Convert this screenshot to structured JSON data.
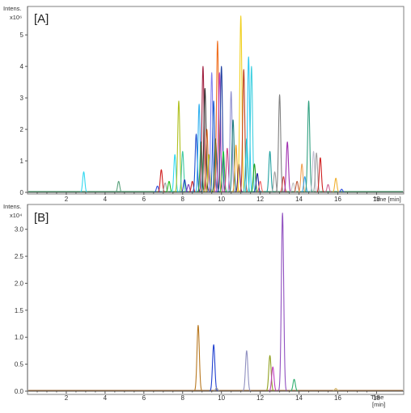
{
  "chart_data": [
    {
      "type": "line",
      "panel_label": "[A]",
      "ylabel_line1": "Intens.",
      "ylabel_exponent": "x10⁶",
      "xlabel": "Time [min]",
      "xlim": [
        0,
        19.4
      ],
      "ylim": [
        0,
        5.8
      ],
      "xticks": [
        2,
        4,
        6,
        8,
        10,
        12,
        14,
        16,
        18
      ],
      "yticks": [
        0,
        1,
        2,
        3,
        4,
        5
      ],
      "baseline_color": "#2e8b57",
      "peaks": [
        {
          "t": 2.9,
          "h": 0.65,
          "color": "#30d8f0"
        },
        {
          "t": 4.7,
          "h": 0.35,
          "color": "#5aa27c"
        },
        {
          "t": 6.7,
          "h": 0.2,
          "color": "#3050e0"
        },
        {
          "t": 6.9,
          "h": 0.72,
          "color": "#d02020"
        },
        {
          "t": 7.1,
          "h": 0.3,
          "color": "#a0a0a0"
        },
        {
          "t": 7.3,
          "h": 0.35,
          "color": "#20c020"
        },
        {
          "t": 7.6,
          "h": 1.2,
          "color": "#30d8f0"
        },
        {
          "t": 7.8,
          "h": 2.9,
          "color": "#b0c020"
        },
        {
          "t": 8.0,
          "h": 1.3,
          "color": "#40c8a0"
        },
        {
          "t": 8.1,
          "h": 0.4,
          "color": "#2040c0"
        },
        {
          "t": 8.3,
          "h": 0.25,
          "color": "#8040c0"
        },
        {
          "t": 8.5,
          "h": 0.35,
          "color": "#d02020"
        },
        {
          "t": 8.7,
          "h": 1.85,
          "color": "#2050d0"
        },
        {
          "t": 8.85,
          "h": 2.8,
          "color": "#30b0f0"
        },
        {
          "t": 8.95,
          "h": 1.6,
          "color": "#20a040"
        },
        {
          "t": 9.05,
          "h": 4.0,
          "color": "#a02040"
        },
        {
          "t": 9.15,
          "h": 3.3,
          "color": "#303030"
        },
        {
          "t": 9.25,
          "h": 2.0,
          "color": "#d06020"
        },
        {
          "t": 9.35,
          "h": 1.2,
          "color": "#c0c020"
        },
        {
          "t": 9.5,
          "h": 3.8,
          "color": "#8080f0"
        },
        {
          "t": 9.6,
          "h": 2.9,
          "color": "#2060d0"
        },
        {
          "t": 9.7,
          "h": 1.7,
          "color": "#106030"
        },
        {
          "t": 9.8,
          "h": 4.8,
          "color": "#f07020"
        },
        {
          "t": 9.9,
          "h": 3.8,
          "color": "#c040c0"
        },
        {
          "t": 10.0,
          "h": 4.0,
          "color": "#2040a0"
        },
        {
          "t": 10.1,
          "h": 1.3,
          "color": "#20c040"
        },
        {
          "t": 10.3,
          "h": 1.4,
          "color": "#d04080"
        },
        {
          "t": 10.5,
          "h": 3.2,
          "color": "#9090d0"
        },
        {
          "t": 10.6,
          "h": 2.3,
          "color": "#208080"
        },
        {
          "t": 10.75,
          "h": 1.5,
          "color": "#f0a020"
        },
        {
          "t": 10.9,
          "h": 0.9,
          "color": "#602080"
        },
        {
          "t": 11.0,
          "h": 5.6,
          "color": "#f0d020"
        },
        {
          "t": 11.15,
          "h": 3.9,
          "color": "#c04020"
        },
        {
          "t": 11.3,
          "h": 1.7,
          "color": "#30c0c0"
        },
        {
          "t": 11.4,
          "h": 4.3,
          "color": "#30c8f0"
        },
        {
          "t": 11.55,
          "h": 4.0,
          "color": "#40d0e0"
        },
        {
          "t": 11.7,
          "h": 0.9,
          "color": "#20a020"
        },
        {
          "t": 11.85,
          "h": 0.6,
          "color": "#2020a0"
        },
        {
          "t": 12.0,
          "h": 0.35,
          "color": "#f06060"
        },
        {
          "t": 12.5,
          "h": 1.3,
          "color": "#20a0a0"
        },
        {
          "t": 12.75,
          "h": 0.65,
          "color": "#a0a0a0"
        },
        {
          "t": 13.0,
          "h": 3.1,
          "color": "#808080"
        },
        {
          "t": 13.2,
          "h": 0.5,
          "color": "#d04040"
        },
        {
          "t": 13.4,
          "h": 1.6,
          "color": "#a030b0"
        },
        {
          "t": 13.7,
          "h": 0.3,
          "color": "#c0c0c0"
        },
        {
          "t": 13.9,
          "h": 0.35,
          "color": "#c06040"
        },
        {
          "t": 14.15,
          "h": 0.9,
          "color": "#f0a050"
        },
        {
          "t": 14.3,
          "h": 0.5,
          "color": "#30a0f0"
        },
        {
          "t": 14.5,
          "h": 2.9,
          "color": "#30a080"
        },
        {
          "t": 14.75,
          "h": 1.3,
          "color": "#c0c0d0"
        },
        {
          "t": 14.9,
          "h": 1.25,
          "color": "#a0a0a0"
        },
        {
          "t": 15.1,
          "h": 1.1,
          "color": "#d02020"
        },
        {
          "t": 15.5,
          "h": 0.25,
          "color": "#d06090"
        },
        {
          "t": 15.9,
          "h": 0.45,
          "color": "#f0b030"
        },
        {
          "t": 16.2,
          "h": 0.1,
          "color": "#3050e0"
        }
      ]
    },
    {
      "type": "line",
      "panel_label": "[B]",
      "ylabel_line1": "Intens.",
      "ylabel_exponent": "x10⁴",
      "xlabel_line1": "Time",
      "xlabel_line2": "[min]",
      "xlim": [
        0,
        19.4
      ],
      "ylim": [
        0,
        3.4
      ],
      "xticks": [
        2,
        4,
        6,
        8,
        10,
        12,
        14,
        16,
        18
      ],
      "yticks": [
        0.0,
        0.5,
        1.0,
        1.5,
        2.0,
        2.5,
        3.0
      ],
      "ytick_labels": [
        "0.0",
        "0.5",
        "1.0",
        "1.5",
        "2.0",
        "2.5",
        "3.0"
      ],
      "baseline_color": "#996633",
      "peaks": [
        {
          "t": 8.8,
          "h": 1.22,
          "color": "#b87820"
        },
        {
          "t": 9.6,
          "h": 0.86,
          "color": "#2040d0"
        },
        {
          "t": 9.75,
          "h": 0.06,
          "color": "#a0a0a0"
        },
        {
          "t": 11.3,
          "h": 0.75,
          "color": "#9090c0"
        },
        {
          "t": 12.5,
          "h": 0.66,
          "color": "#90a020"
        },
        {
          "t": 12.65,
          "h": 0.45,
          "color": "#c040c0"
        },
        {
          "t": 13.15,
          "h": 3.3,
          "color": "#9050c0"
        },
        {
          "t": 13.75,
          "h": 0.22,
          "color": "#30b070"
        },
        {
          "t": 15.9,
          "h": 0.05,
          "color": "#d0b060"
        }
      ]
    }
  ]
}
